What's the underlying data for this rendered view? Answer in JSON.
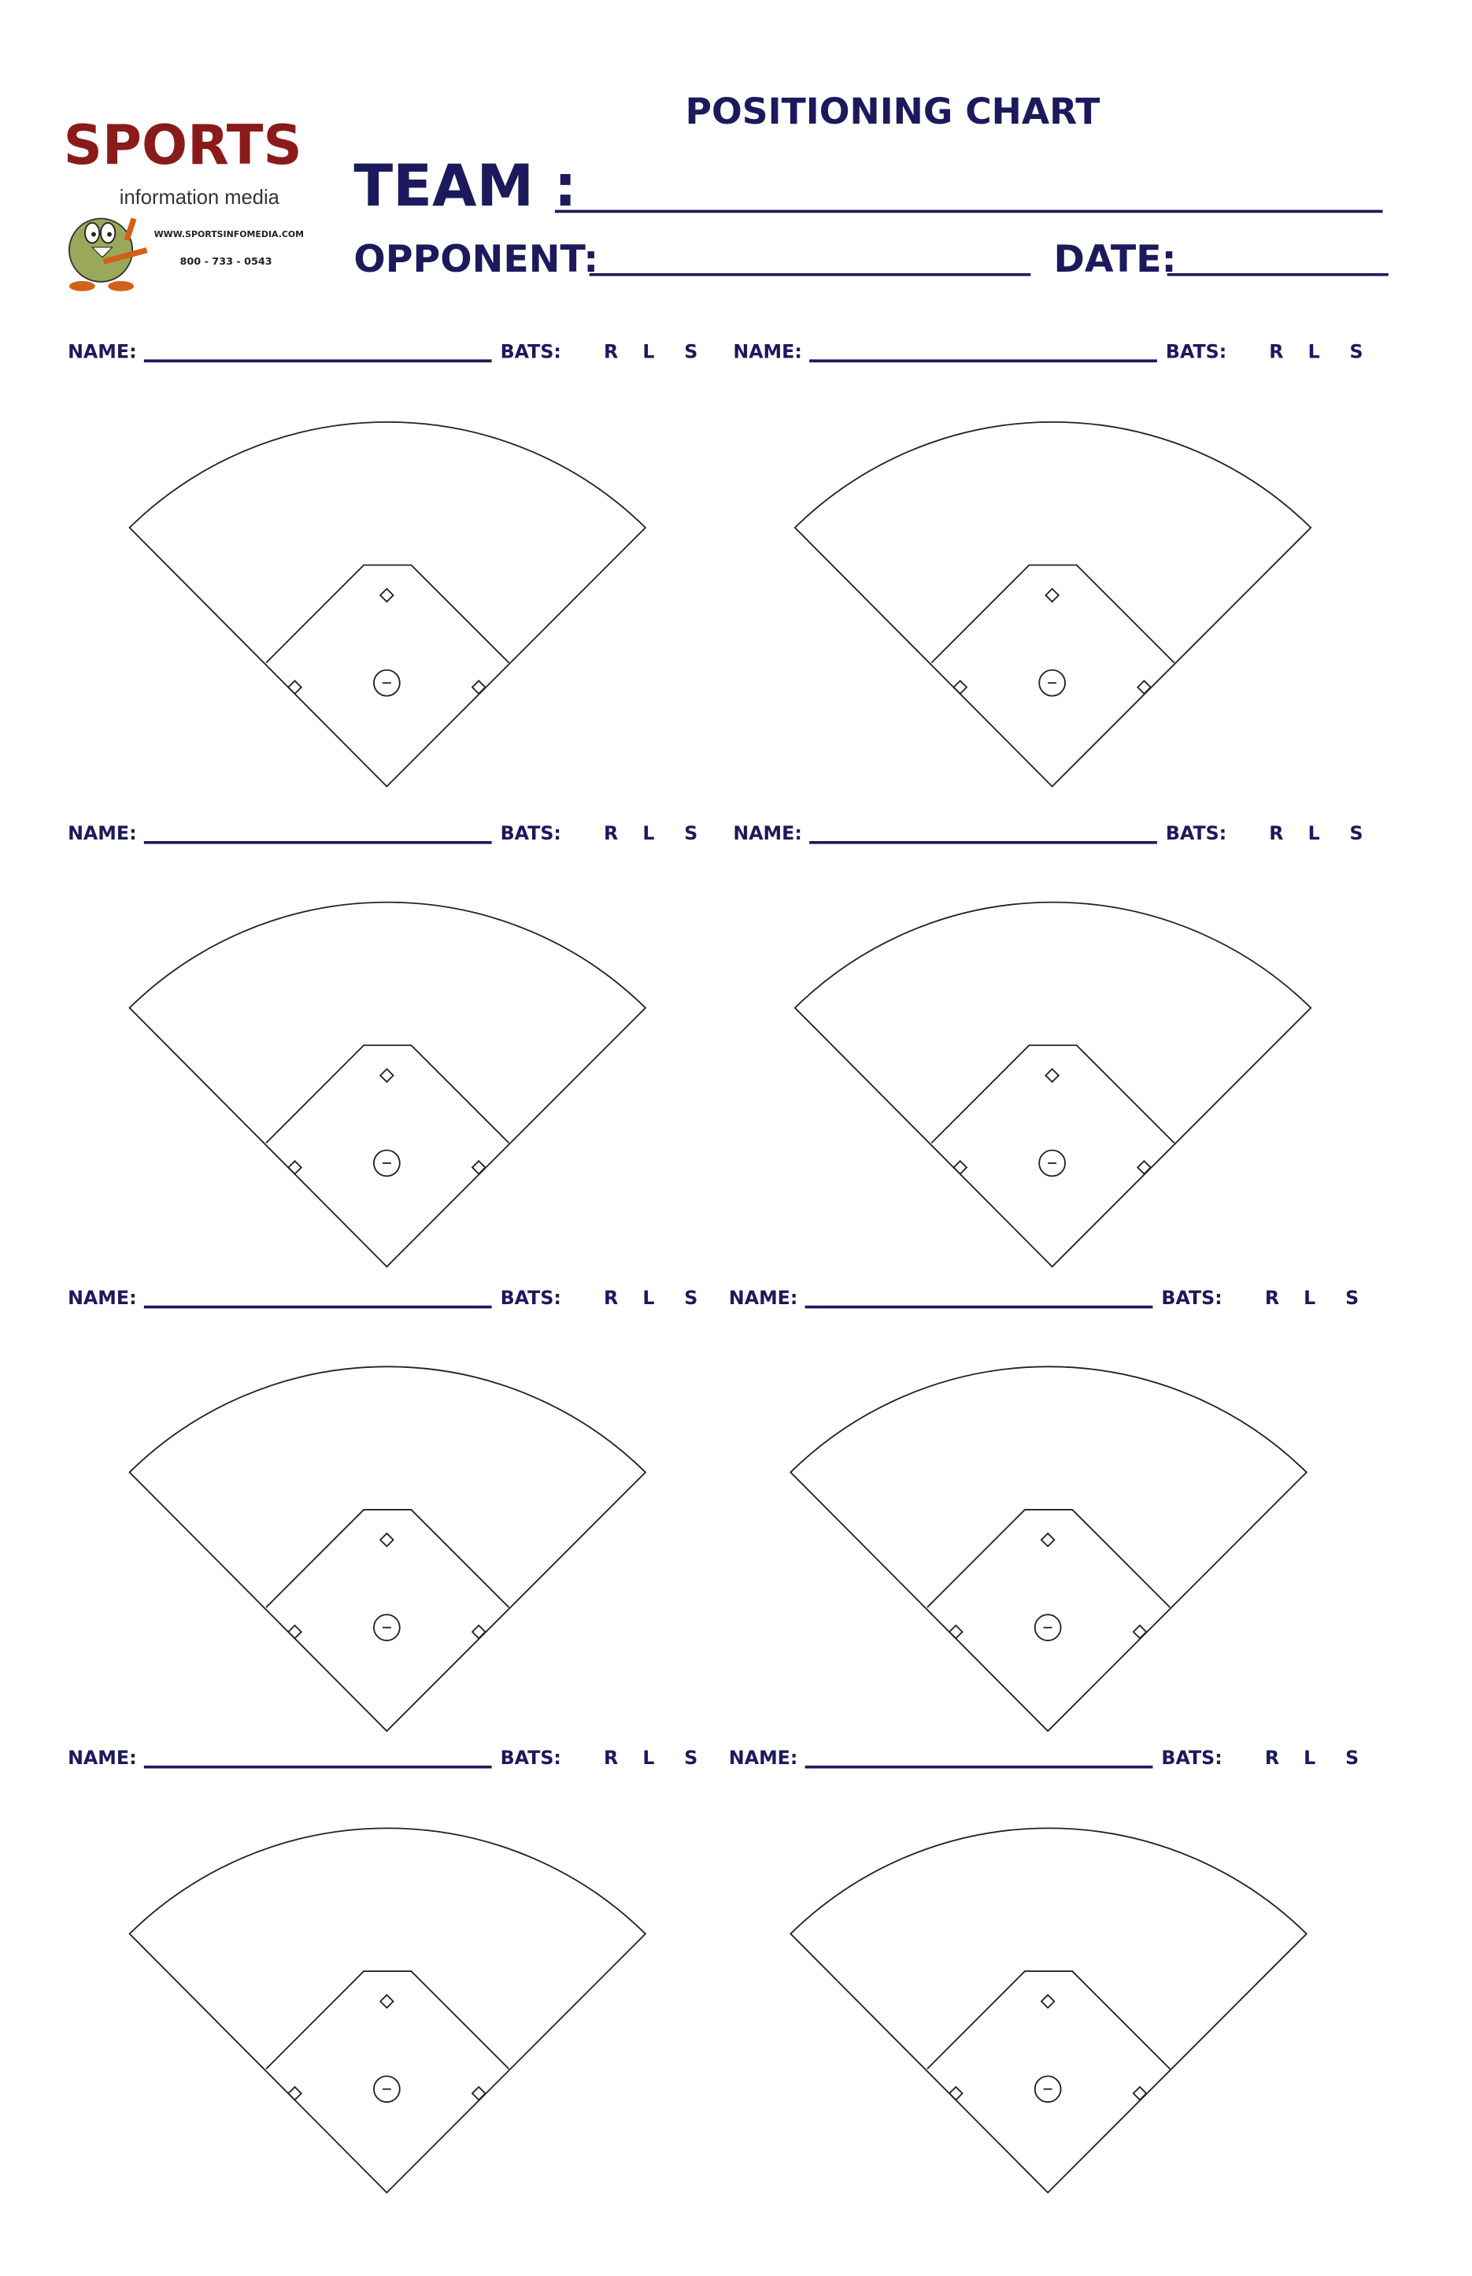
{
  "logo": {
    "brand": "SPORTS",
    "tagline": "information media",
    "website": "WWW.SPORTSINFOMEDIA.COM",
    "phone": "800 - 733 - 0543",
    "brand_color": "#8b1a1a"
  },
  "header": {
    "title": "POSITIONING CHART",
    "team_label": "TEAM :",
    "opponent_label": "OPPONENT:",
    "date_label": "DATE:"
  },
  "slot_labels": {
    "name": "NAME:",
    "bats": "BATS:",
    "right": "R",
    "left": "L",
    "switch": "S"
  },
  "slot_count": 8,
  "colors": {
    "text": "#1c1a5c",
    "field_line": "#222222"
  }
}
